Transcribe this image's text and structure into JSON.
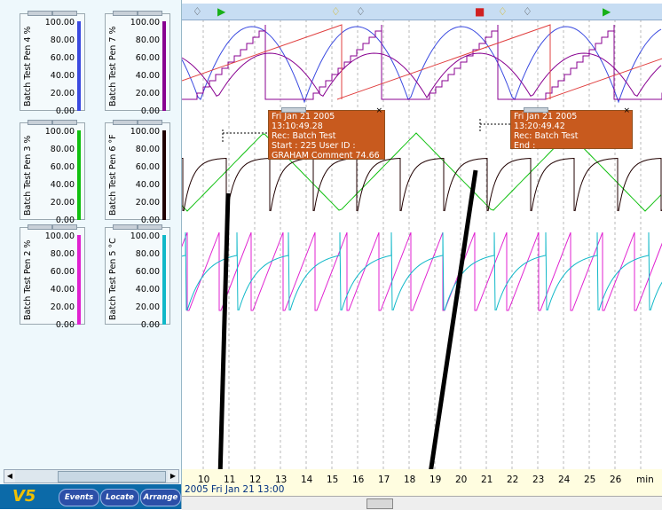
{
  "app": {
    "logo_text": "V5"
  },
  "scales": [
    {
      "id": "pen4",
      "label": "Batch Test Pen 4 %",
      "color": "#3a4ae0",
      "values": [
        "100.00",
        "80.00",
        "60.00",
        "40.00",
        "20.00",
        "0.00"
      ]
    },
    {
      "id": "pen7",
      "label": "Batch Test Pen 7 %",
      "color": "#880090",
      "values": [
        "100.00",
        "80.00",
        "60.00",
        "40.00",
        "20.00",
        "0.00"
      ]
    },
    {
      "id": "pen3",
      "label": "Batch Test Pen 3 %",
      "color": "#10c010",
      "values": [
        "100.00",
        "80.00",
        "60.00",
        "40.00",
        "20.00",
        "0.00"
      ]
    },
    {
      "id": "pen6",
      "label": "Batch Test Pen 6 °F",
      "color": "#200000",
      "values": [
        "100.00",
        "80.00",
        "60.00",
        "40.00",
        "20.00",
        "0.00"
      ]
    },
    {
      "id": "pen2",
      "label": "Batch Test Pen 2 %",
      "color": "#e020d0",
      "values": [
        "100.00",
        "80.00",
        "60.00",
        "40.00",
        "20.00",
        "0.00"
      ]
    },
    {
      "id": "pen5",
      "label": "Batch Test Pen 5 °C",
      "color": "#10b8c8",
      "values": [
        "100.00",
        "80.00",
        "60.00",
        "40.00",
        "20.00",
        "0.00"
      ]
    }
  ],
  "toolbar": {
    "events": "Events",
    "locate": "Locate",
    "arrange": "Arrange"
  },
  "time_axis": {
    "ticks": [
      "10",
      "11",
      "12",
      "13",
      "14",
      "15",
      "16",
      "17",
      "18",
      "19",
      "20",
      "21",
      "22",
      "23",
      "24",
      "25",
      "26"
    ],
    "unit": "min",
    "date_label": "2005 Fri Jan 21  13:00"
  },
  "annotations": [
    {
      "lines": [
        "Fri Jan 21 2005 13:10:49.28",
        "Rec: Batch Test",
        "Start :  225 User ID :",
        "GRAHAM Comment 74.66"
      ]
    },
    {
      "lines": [
        "Fri Jan 21 2005 13:20:49.42",
        "Rec: Batch Test",
        "End :"
      ]
    }
  ],
  "colors": {
    "pen4": "#3a4ae0",
    "pen7": "#880090",
    "red_ramp": "#e04040",
    "pen3": "#10c010",
    "pen6": "#200000",
    "pen2": "#e020d0",
    "pen5": "#10b8c8",
    "annotation": "#c85a1e"
  },
  "events_strip": {
    "icons": [
      "bell-icon",
      "flag-green-icon",
      "bell-yellow-icon",
      "bell-icon",
      "flag-red-icon",
      "bell-yellow-icon",
      "bell-icon",
      "flag-green-icon"
    ]
  }
}
